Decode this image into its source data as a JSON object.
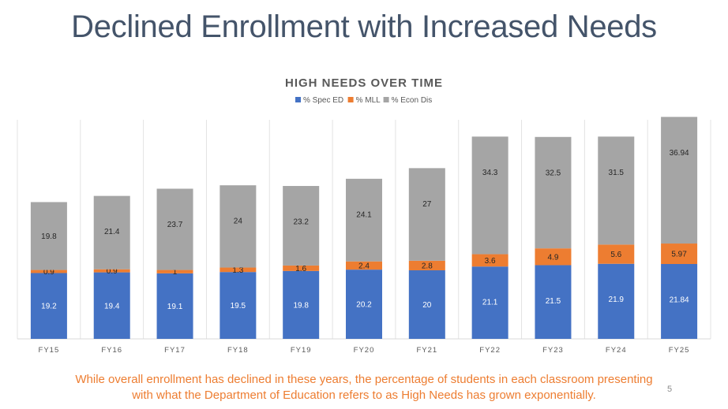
{
  "slide": {
    "title": "Declined Enrollment with Increased Needs",
    "caption_line1": "While overall enrollment has declined in these years, the percentage of students in each classroom presenting",
    "caption_line2": "with what the Department of Education refers to as High Needs has grown exponentially.",
    "page_number": "5"
  },
  "chart_data": {
    "type": "bar",
    "stacked": true,
    "title": "HIGH NEEDS OVER TIME",
    "xlabel": "",
    "ylabel": "",
    "legend_position": "top-center",
    "gridlines": "vertical",
    "ylim": [
      0,
      65
    ],
    "categories": [
      "FY15",
      "FY16",
      "FY17",
      "FY18",
      "FY19",
      "FY20",
      "FY21",
      "FY22",
      "FY23",
      "FY24",
      "FY25"
    ],
    "series": [
      {
        "name": "% Spec ED",
        "color": "#4472c4",
        "label_color": "#ffffff",
        "values": [
          19.2,
          19.4,
          19.1,
          19.5,
          19.8,
          20.2,
          20,
          21.1,
          21.5,
          21.9,
          21.84
        ],
        "labels": [
          "19.2",
          "19.4",
          "19.1",
          "19.5",
          "19.8",
          "20.2",
          "20",
          "21.1",
          "21.5",
          "21.9",
          "21.84"
        ]
      },
      {
        "name": "% MLL",
        "color": "#ed7d31",
        "label_color": "#262626",
        "values": [
          0.9,
          0.9,
          1,
          1.3,
          1.6,
          2.4,
          2.8,
          3.6,
          4.9,
          5.6,
          5.97
        ],
        "labels": [
          "0.9",
          "0.9",
          "1",
          "1.3",
          "1.6",
          "2.4",
          "2.8",
          "3.6",
          "4.9",
          "5.6",
          "5.97"
        ]
      },
      {
        "name": "% Econ Dis",
        "color": "#a5a5a5",
        "label_color": "#262626",
        "values": [
          19.8,
          21.4,
          23.7,
          24,
          23.2,
          24.1,
          27,
          34.3,
          32.5,
          31.5,
          36.94
        ],
        "labels": [
          "19.8",
          "21.4",
          "23.7",
          "24",
          "23.2",
          "24.1",
          "27",
          "34.3",
          "32.5",
          "31.5",
          "36.94"
        ]
      }
    ]
  }
}
